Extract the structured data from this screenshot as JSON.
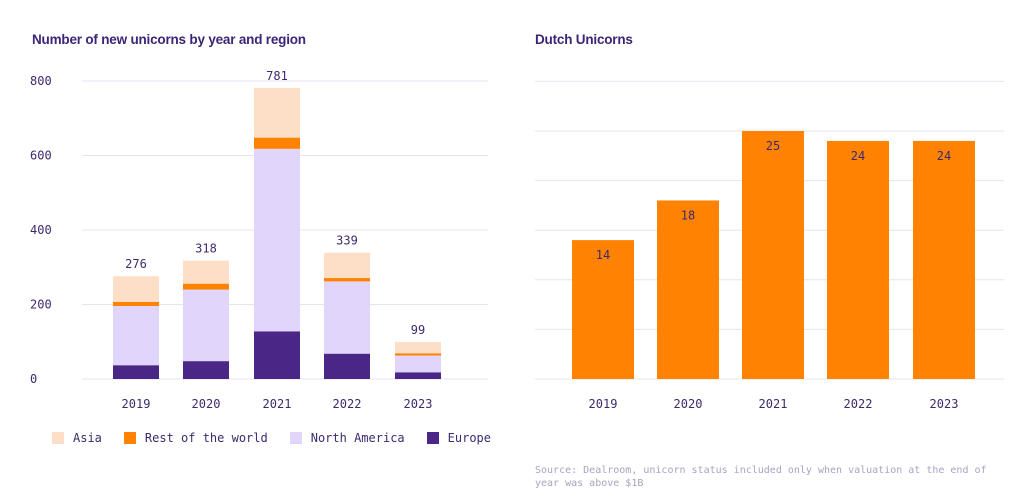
{
  "chart_data": [
    {
      "type": "bar",
      "stacked": true,
      "title": "Number of new unicorns by year and region",
      "categories": [
        "2019",
        "2020",
        "2021",
        "2022",
        "2023"
      ],
      "ylim": [
        0,
        800
      ],
      "yticks": [
        0,
        200,
        400,
        600,
        800
      ],
      "totals": [
        276,
        318,
        781,
        339,
        99
      ],
      "series": [
        {
          "name": "Europe",
          "color": "#4a2787",
          "values": [
            37,
            48,
            128,
            68,
            18
          ]
        },
        {
          "name": "North America",
          "color": "#e2d5fb",
          "values": [
            159,
            192,
            490,
            194,
            45
          ]
        },
        {
          "name": "Rest of the world",
          "color": "#ff8200",
          "values": [
            11,
            16,
            30,
            9,
            6
          ]
        },
        {
          "name": "Asia",
          "color": "#fddfc7",
          "values": [
            69,
            62,
            133,
            68,
            30
          ]
        }
      ],
      "legend": [
        "Asia",
        "Rest of the world",
        "North America",
        "Europe"
      ],
      "legend_position": "bottom",
      "grid": true
    },
    {
      "type": "bar",
      "title": "Dutch Unicorns",
      "categories": [
        "2019",
        "2020",
        "2021",
        "2022",
        "2023"
      ],
      "values": [
        14,
        18,
        25,
        24,
        24
      ],
      "color": "#ff8200",
      "ylim": [
        0,
        30
      ],
      "grid": true,
      "note": "Source: Dealroom, unicorn status included only when valuation at the end of year was above $1B"
    }
  ]
}
